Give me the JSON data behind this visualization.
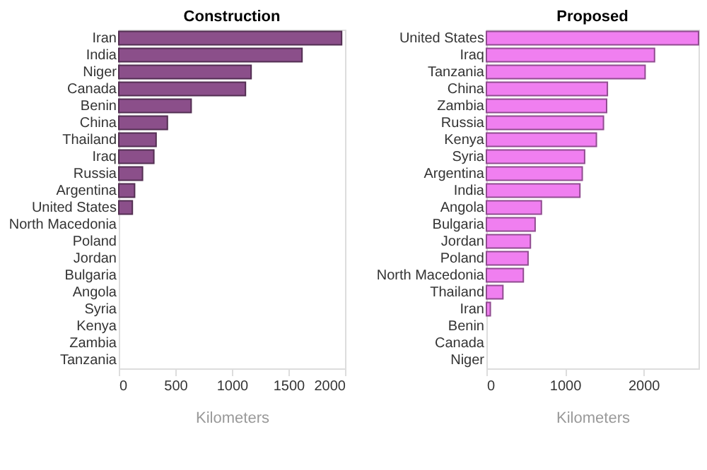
{
  "chart_data": [
    {
      "type": "bar",
      "orientation": "horizontal",
      "title": "Construction",
      "xlabel": "Kilometers",
      "categories": [
        "Iran",
        "India",
        "Niger",
        "Canada",
        "Benin",
        "China",
        "Thailand",
        "Iraq",
        "Russia",
        "Argentina",
        "United States",
        "North Macedonia",
        "Poland",
        "Jordan",
        "Bulgaria",
        "Angola",
        "Syria",
        "Kenya",
        "Zambia",
        "Tanzania"
      ],
      "values": [
        1970,
        1620,
        1170,
        1120,
        640,
        430,
        330,
        310,
        210,
        140,
        120,
        0,
        0,
        0,
        0,
        0,
        0,
        0,
        0,
        0
      ],
      "color": "#8b4f8a",
      "xlim": [
        0,
        2000
      ],
      "xticks": [
        0,
        500,
        1000,
        1500,
        2000
      ]
    },
    {
      "type": "bar",
      "orientation": "horizontal",
      "title": "Proposed",
      "xlabel": "Kilometers",
      "categories": [
        "United States",
        "Iraq",
        "Tanzania",
        "China",
        "Zambia",
        "Russia",
        "Kenya",
        "Syria",
        "Argentina",
        "India",
        "Angola",
        "Bulgaria",
        "Jordan",
        "Poland",
        "North Macedonia",
        "Thailand",
        "Iran",
        "Benin",
        "Canada",
        "Niger"
      ],
      "values": [
        2700,
        2140,
        2020,
        1540,
        1530,
        1490,
        1400,
        1250,
        1220,
        1190,
        700,
        620,
        560,
        530,
        470,
        210,
        50,
        0,
        0,
        0
      ],
      "color": "#f07ff0",
      "xlim": [
        0,
        2700
      ],
      "xticks": [
        0,
        1000,
        2000
      ]
    }
  ]
}
